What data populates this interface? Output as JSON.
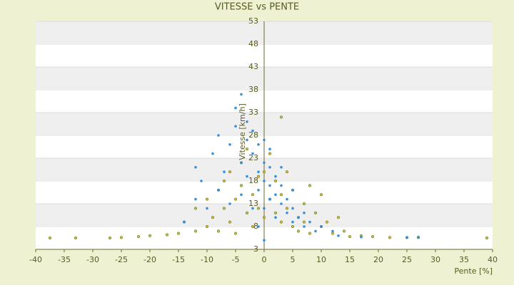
{
  "chart_data": {
    "type": "scatter",
    "title": "VITESSE vs PENTE",
    "x_label": "Pente [%]",
    "y_label": "Vitesse [km/h]",
    "xlim": [
      -40,
      40
    ],
    "xticks": [
      -40,
      -35,
      -30,
      -25,
      -20,
      -15,
      -10,
      -5,
      0,
      5,
      10,
      15,
      20,
      25,
      30,
      35,
      40
    ],
    "ylim": [
      3,
      53
    ],
    "yticks": [
      3,
      8,
      13,
      18,
      23,
      28,
      33,
      38,
      43,
      48,
      53
    ],
    "banded_grid": true,
    "series": [
      {
        "color": "#c9c43a",
        "x": [
          -37.5,
          -33,
          -27,
          -25,
          -22,
          -20,
          -17,
          -15,
          -14,
          -12,
          -12,
          -10,
          -10,
          -9,
          -8,
          -8,
          -7,
          -7,
          -6,
          -6,
          -5,
          -5,
          -4,
          -4,
          -3,
          -3,
          -2,
          -2,
          -1,
          -1,
          0,
          0,
          1,
          1,
          2,
          2,
          3,
          3,
          3,
          4,
          4,
          5,
          5,
          6,
          6,
          7,
          7,
          8,
          8,
          9,
          10,
          10,
          11,
          12,
          13,
          14,
          15,
          17,
          19,
          22,
          25,
          27,
          39
        ],
        "values": [
          5.5,
          5.5,
          5.5,
          5.6,
          5.8,
          6,
          6.2,
          6.5,
          9,
          7,
          12,
          8,
          14,
          10,
          7,
          16,
          12,
          18,
          9,
          20,
          14,
          6.5,
          17,
          22,
          11,
          25,
          15,
          8,
          19,
          12,
          10,
          20,
          14,
          24,
          11,
          18,
          9,
          15,
          32,
          12,
          20,
          8,
          16,
          10,
          7,
          13,
          9,
          17,
          6.5,
          11,
          8,
          15,
          9,
          6.5,
          10,
          7,
          5.8,
          6,
          5.8,
          5.6,
          5.6,
          5.6,
          5.5
        ]
      },
      {
        "color": "#3a8fd8",
        "x": [
          -14,
          -12,
          -12,
          -11,
          -10,
          -9,
          -8,
          -8,
          -7,
          -6,
          -6,
          -5,
          -5,
          -4,
          -4,
          -4,
          -3,
          -3,
          -3,
          -2,
          -2,
          -2,
          -1,
          -1,
          -1,
          -1,
          0,
          0,
          0,
          0,
          0,
          1,
          1,
          1,
          1,
          2,
          2,
          2,
          3,
          3,
          3,
          4,
          4,
          5,
          5,
          5,
          6,
          7,
          7,
          8,
          9,
          10,
          12,
          13,
          17,
          25,
          27
        ],
        "values": [
          9,
          14,
          21,
          18,
          12,
          24,
          16,
          28,
          20,
          26,
          13,
          30,
          34,
          37,
          22,
          15,
          27,
          31,
          19,
          24,
          29,
          12,
          20,
          26,
          16,
          8,
          22,
          18,
          27,
          12,
          5,
          21,
          17,
          14,
          25,
          19,
          15,
          10,
          17,
          13,
          21,
          14,
          11,
          12,
          16,
          9,
          10,
          11,
          8,
          9,
          7,
          8,
          7,
          6,
          5.7,
          5.6,
          5.7
        ]
      }
    ]
  }
}
